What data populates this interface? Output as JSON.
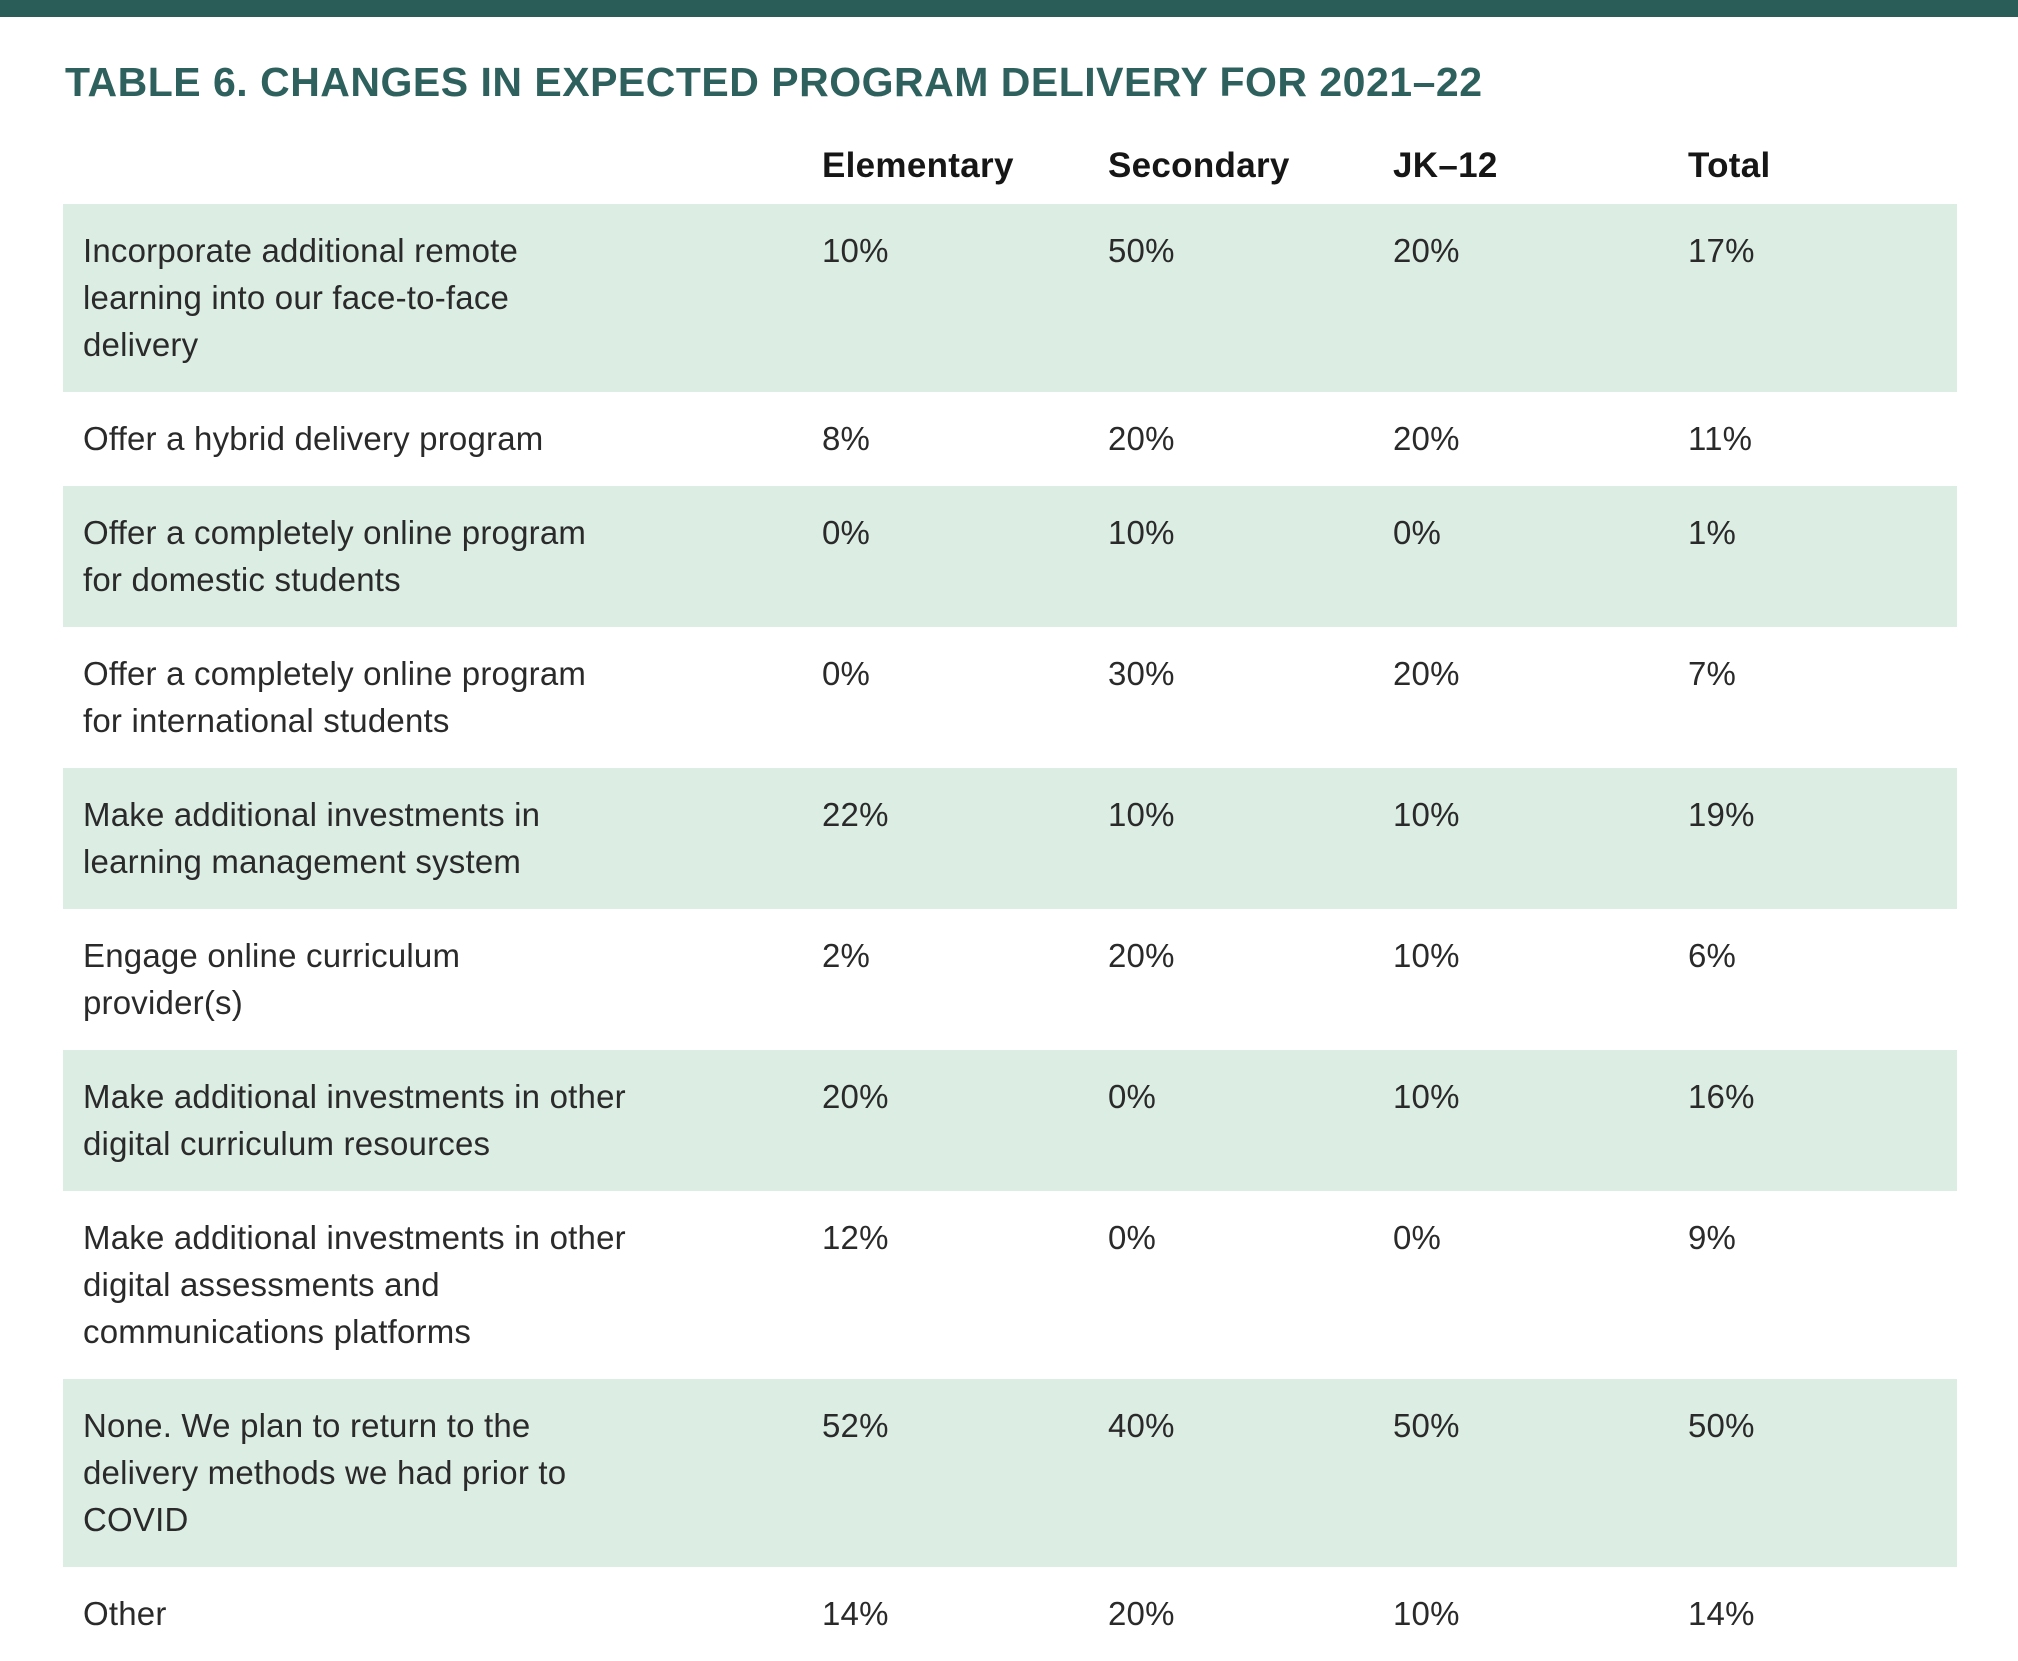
{
  "page": {
    "top_bar_color": "#2b5d58",
    "background_color": "#ffffff"
  },
  "title": "TABLE 6. CHANGES IN EXPECTED PROGRAM DELIVERY FOR 2021–22",
  "colors": {
    "title_teal": "#2e615d",
    "row_shade_green": "#dcede4",
    "body_text": "#2a2a2a"
  },
  "table": {
    "columns": [
      "Elementary",
      "Secondary",
      "JK–12",
      "Total"
    ],
    "rows": [
      {
        "label": "Incorporate additional remote learning into our face-to-face delivery",
        "values": [
          "10%",
          "50%",
          "20%",
          "17%"
        ],
        "shaded": true
      },
      {
        "label": "Offer a hybrid delivery program",
        "values": [
          "8%",
          "20%",
          "20%",
          "11%"
        ],
        "shaded": false
      },
      {
        "label": "Offer a completely online program for domestic students",
        "values": [
          "0%",
          "10%",
          "0%",
          "1%"
        ],
        "shaded": true
      },
      {
        "label": "Offer a completely online program for international students",
        "values": [
          "0%",
          "30%",
          "20%",
          "7%"
        ],
        "shaded": false
      },
      {
        "label": "Make additional investments in learning management system",
        "values": [
          "22%",
          "10%",
          "10%",
          "19%"
        ],
        "shaded": true
      },
      {
        "label": "Engage online curriculum provider(s)",
        "values": [
          "2%",
          "20%",
          "10%",
          "6%"
        ],
        "shaded": false
      },
      {
        "label": "Make additional investments in other digital curriculum resources",
        "values": [
          "20%",
          "0%",
          "10%",
          "16%"
        ],
        "shaded": true
      },
      {
        "label": "Make additional investments in other digital assessments and communications platforms",
        "values": [
          "12%",
          "0%",
          "0%",
          "9%"
        ],
        "shaded": false
      },
      {
        "label": "None. We plan to return to the delivery methods we had prior to COVID",
        "values": [
          "52%",
          "40%",
          "50%",
          "50%"
        ],
        "shaded": true
      },
      {
        "label": "Other",
        "values": [
          "14%",
          "20%",
          "10%",
          "14%"
        ],
        "shaded": false
      }
    ]
  }
}
